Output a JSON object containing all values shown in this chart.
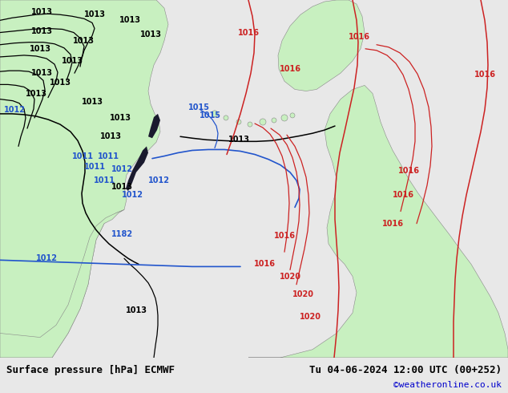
{
  "title_left": "Surface pressure [hPa] ECMWF",
  "title_right": "Tu 04-06-2024 12:00 UTC (00+252)",
  "credit": "©weatheronline.co.uk",
  "credit_color": "#0000cc",
  "bg_color": "#e8e8e8",
  "land_color": "#c8f0c0",
  "ocean_color": "#d8e8f0",
  "fig_width": 6.34,
  "fig_height": 4.9,
  "footer_bg": "#cccccc",
  "footer_text_color": "#000000",
  "footer_fontsize": 9,
  "credit_fontsize": 8,
  "label_fontsize": 7
}
